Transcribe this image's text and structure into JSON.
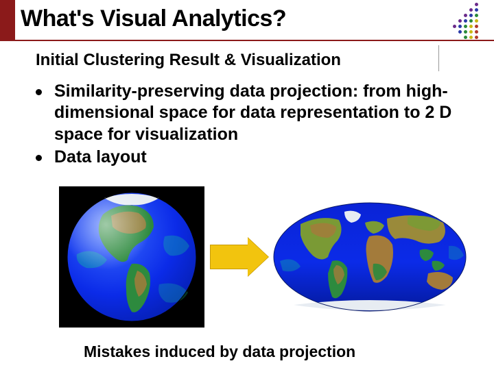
{
  "slide": {
    "title": "What's Visual Analytics?",
    "subtitle": "Initial Clustering Result & Visualization",
    "bullet1": "Similarity-preserving data projection: from high-dimensional space for data representation to 2 D space for visualization",
    "bullet2": "Data layout",
    "caption": "Mistakes induced by data projection"
  },
  "colors": {
    "accent_bar": "#8b1a1a",
    "arrow_fill": "#f2c40e",
    "arrow_border": "#c79a06",
    "ocean_blue": "#0b2be8",
    "land_green": "#2d8a3e",
    "land_brown": "#a37b3b",
    "ice": "#e7ecf2",
    "deep_blue": "#031a9c"
  },
  "dot_motif": {
    "rows": [
      {
        "y": 0,
        "dots": [
          {
            "x": 50,
            "c": "#6a2a8a"
          }
        ]
      },
      {
        "y": 8,
        "dots": [
          {
            "x": 42,
            "c": "#6a2a8a"
          },
          {
            "x": 50,
            "c": "#2a3aa8"
          }
        ]
      },
      {
        "y": 16,
        "dots": [
          {
            "x": 34,
            "c": "#6a2a8a"
          },
          {
            "x": 42,
            "c": "#2a3aa8"
          },
          {
            "x": 50,
            "c": "#2a8a3a"
          }
        ]
      },
      {
        "y": 24,
        "dots": [
          {
            "x": 26,
            "c": "#6a2a8a"
          },
          {
            "x": 34,
            "c": "#2a3aa8"
          },
          {
            "x": 42,
            "c": "#2a8a3a"
          },
          {
            "x": 50,
            "c": "#c9b912"
          }
        ]
      },
      {
        "y": 32,
        "dots": [
          {
            "x": 18,
            "c": "#6a2a8a"
          },
          {
            "x": 26,
            "c": "#2a3aa8"
          },
          {
            "x": 34,
            "c": "#2a8a3a"
          },
          {
            "x": 42,
            "c": "#c9b912"
          },
          {
            "x": 50,
            "c": "#b03a2a"
          }
        ]
      },
      {
        "y": 40,
        "dots": [
          {
            "x": 26,
            "c": "#2a3aa8"
          },
          {
            "x": 34,
            "c": "#2a8a3a"
          },
          {
            "x": 42,
            "c": "#c9b912"
          },
          {
            "x": 50,
            "c": "#b03a2a"
          }
        ]
      },
      {
        "y": 48,
        "dots": [
          {
            "x": 34,
            "c": "#2a8a3a"
          },
          {
            "x": 42,
            "c": "#c9b912"
          },
          {
            "x": 50,
            "c": "#b03a2a"
          }
        ]
      }
    ],
    "size": 5
  }
}
